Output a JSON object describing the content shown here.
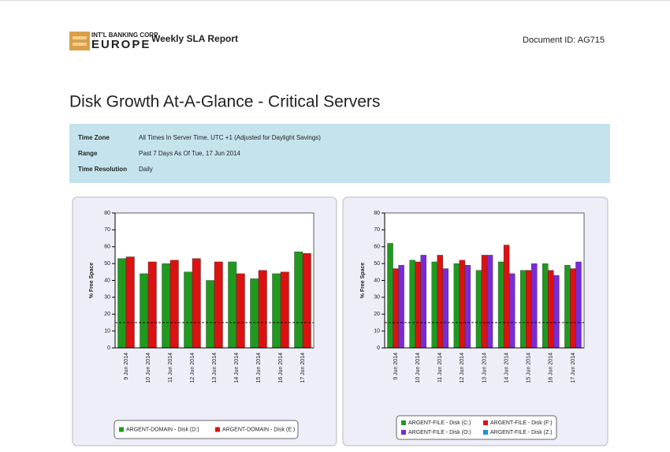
{
  "header": {
    "logo_top": "INT'L BANKING CORP",
    "logo_bottom": "EUROPE",
    "report": "Weekly SLA Report",
    "document_id": "Document ID: AG715"
  },
  "title": "Disk Growth At-A-Glance - Critical Servers",
  "table": {
    "rows": [
      [
        "Time Zone",
        "All Times In Server Time, UTC +1 (Adjusted for Daylight Savings)"
      ],
      [
        "Range",
        "Past 7 Days As Of Tue, 17 Jun 2014"
      ],
      [
        "Time Resolution",
        "Daily"
      ]
    ]
  },
  "chart_data": [
    {
      "type": "bar",
      "ylabel": "% Free Space",
      "ylim": [
        0,
        80
      ],
      "yticks": [
        0,
        10,
        20,
        30,
        40,
        50,
        60,
        70,
        80
      ],
      "grid": false,
      "threshold": 15,
      "categories": [
        "9 Jun 2014",
        "10 Jun 2014",
        "11 Jun 2014",
        "12 Jun 2014",
        "13 Jun 2014",
        "14 Jun 2014",
        "15 Jun 2014",
        "16 Jun 2014",
        "17 Jun 2014"
      ],
      "series": [
        {
          "name": "ARGENT-DOMAIN - Disk (D:)",
          "color": "#1f9a1f",
          "values": [
            53,
            44,
            50,
            45,
            40,
            51,
            41,
            44,
            57
          ]
        },
        {
          "name": "ARGENT-DOMAIN - Disk (E:)",
          "color": "#dd1111",
          "values": [
            54,
            51,
            52,
            53,
            51,
            44,
            46,
            45,
            56
          ]
        }
      ]
    },
    {
      "type": "bar",
      "ylabel": "% Free Space",
      "ylim": [
        0,
        80
      ],
      "yticks": [
        0,
        10,
        20,
        30,
        40,
        50,
        60,
        70,
        80
      ],
      "grid": false,
      "threshold": 15,
      "categories": [
        "9 Jun 2014",
        "10 Jun 2014",
        "11 Jun 2014",
        "12 Jun 2014",
        "13 Jun 2014",
        "14 Jun 2014",
        "15 Jun 2014",
        "16 Jun 2014",
        "17 Jun 2014"
      ],
      "series": [
        {
          "name": "ARGENT-FILE - Disk (C:)",
          "color": "#1f9a1f",
          "values": [
            62,
            52,
            51,
            50,
            46,
            51,
            46,
            50,
            49
          ]
        },
        {
          "name": "ARGENT-FILE - Disk (F:)",
          "color": "#dd1111",
          "values": [
            47,
            51,
            55,
            52,
            55,
            61,
            46,
            46,
            47
          ]
        },
        {
          "name": "ARGENT-FILE - Disk (O:)",
          "color": "#7a2bd6",
          "values": [
            49,
            55,
            47,
            49,
            55,
            44,
            50,
            43,
            51
          ]
        },
        {
          "name": "ARGENT-FILE - Disk (Z:)",
          "color": "#1c8fe0",
          "values": [
            null,
            null,
            null,
            null,
            null,
            null,
            null,
            null,
            null
          ]
        }
      ]
    }
  ]
}
